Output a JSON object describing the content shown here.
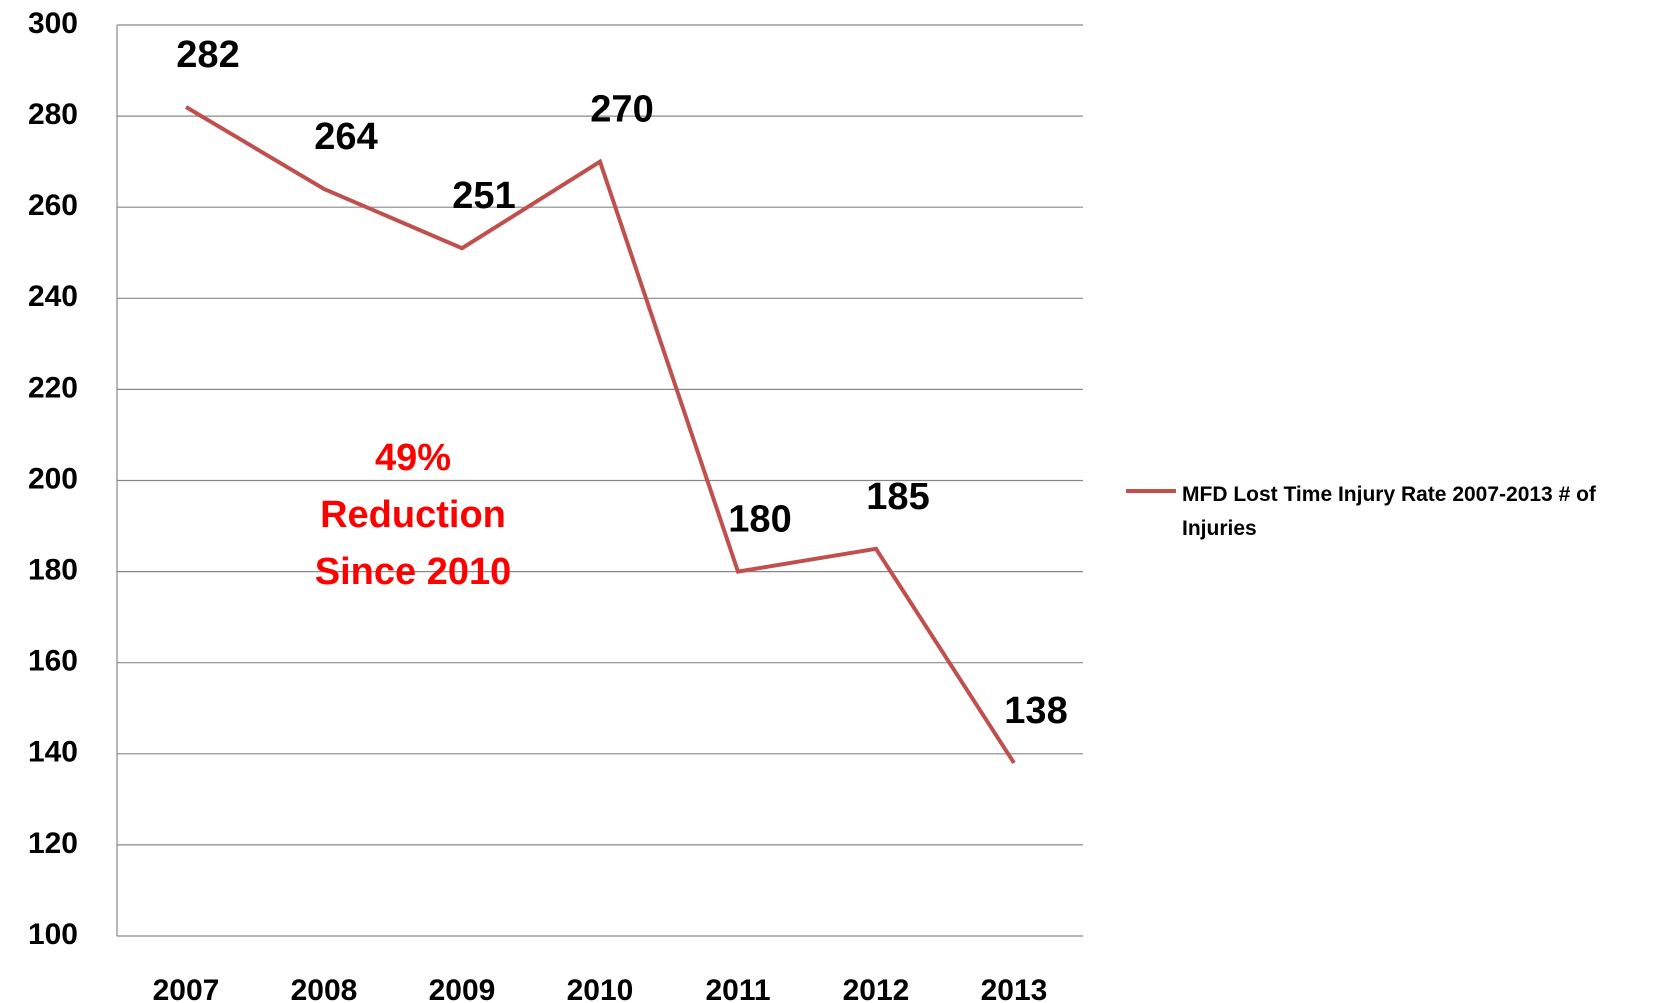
{
  "chart_data": {
    "type": "line",
    "categories": [
      "2007",
      "2008",
      "2009",
      "2010",
      "2011",
      "2012",
      "2013"
    ],
    "series": [
      {
        "name": "MFD Lost Time Injury Rate 2007-2013 # of Injuries",
        "color": "#c0504d",
        "values": [
          282,
          264,
          251,
          270,
          180,
          185,
          138
        ]
      }
    ],
    "ylim": [
      100,
      300
    ],
    "yticks": [
      100,
      120,
      140,
      160,
      180,
      200,
      220,
      240,
      260,
      280,
      300
    ],
    "grid": true,
    "legend": "right",
    "annotation": [
      "49%",
      "Reduction",
      "Since 2010"
    ],
    "annotation_color": "#ff0000"
  }
}
